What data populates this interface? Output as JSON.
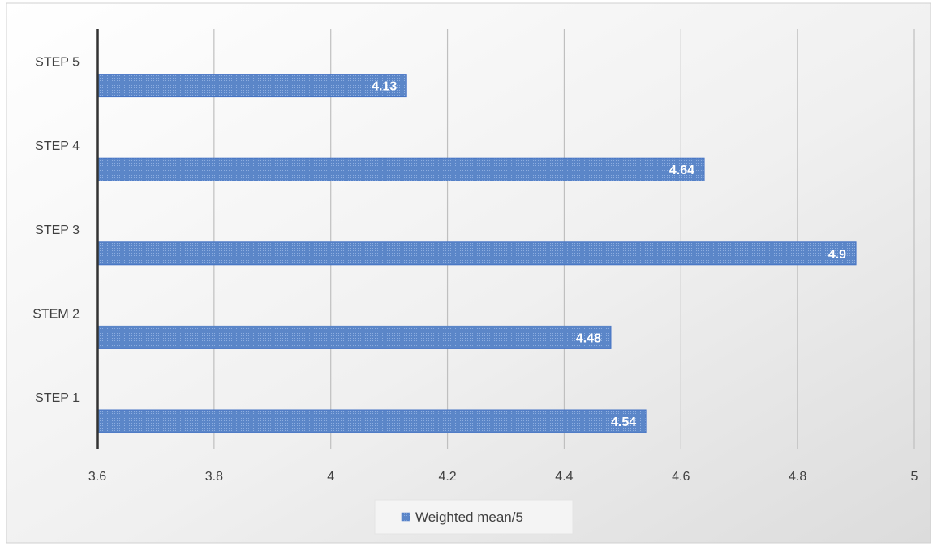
{
  "chart_data": {
    "type": "bar",
    "orientation": "horizontal",
    "categories": [
      "STEP 1",
      "STEM 2",
      "STEP 3",
      "STEP 4",
      "STEP 5"
    ],
    "series": [
      {
        "name": "Weighted mean/5",
        "values": [
          4.54,
          4.48,
          4.9,
          4.64,
          4.13
        ]
      }
    ],
    "data_labels": [
      "4.54",
      "4.48",
      "4.9",
      "4.64",
      "4.13"
    ],
    "xlim": [
      3.6,
      5
    ],
    "x_ticks": [
      3.6,
      3.8,
      4,
      4.2,
      4.4,
      4.6,
      4.8,
      5
    ],
    "x_tick_labels": [
      "3.6",
      "3.8",
      "4",
      "4.2",
      "4.4",
      "4.6",
      "4.8",
      "5"
    ],
    "grid": "vertical",
    "legend_position": "bottom",
    "colors": {
      "bar": "#5b86c8",
      "bar_edge": "#4472c4",
      "axis": "#333333",
      "grid": "#bfbfbf"
    }
  }
}
